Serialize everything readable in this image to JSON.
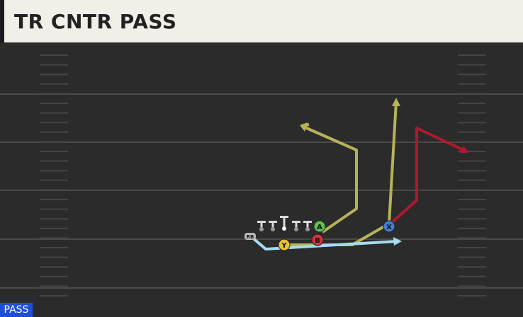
{
  "header": {
    "title": "TR CNTR PASS"
  },
  "players": [
    {
      "label": "A"
    },
    {
      "label": "B"
    },
    {
      "label": "X"
    },
    {
      "label": "Y"
    },
    {
      "label": "RB"
    }
  ],
  "footer": {
    "label": "PASS"
  }
}
